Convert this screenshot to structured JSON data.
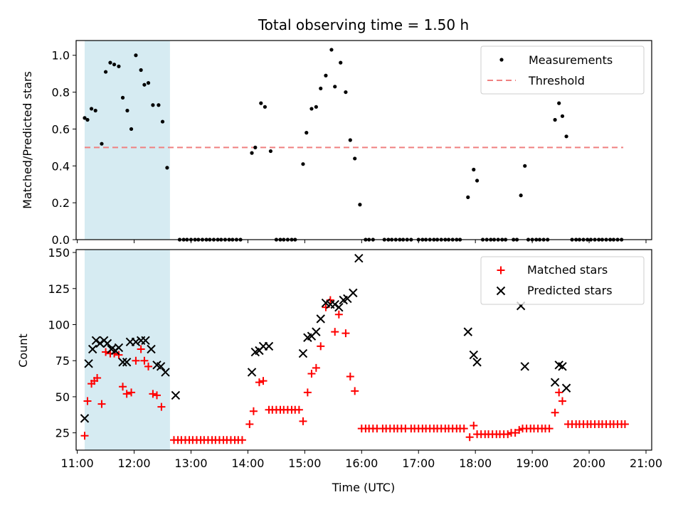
{
  "chart_data": {
    "title": "Total observing time = 1.50 h",
    "xlabel": "Time (UTC)",
    "x_tick_labels": [
      "11:00",
      "12:00",
      "13:00",
      "14:00",
      "15:00",
      "16:00",
      "17:00",
      "18:00",
      "19:00",
      "20:00",
      "21:00"
    ],
    "x_range_hours": [
      10.98,
      21.1
    ],
    "highlight_span_hours": [
      11.13,
      12.63
    ],
    "top_panel": {
      "type": "scatter",
      "ylabel": "Matched/Predicted stars",
      "ylim": [
        0,
        1.08
      ],
      "y_ticks": [
        "0.0",
        "0.2",
        "0.4",
        "0.6",
        "0.8",
        "1.0"
      ],
      "y_tick_values": [
        0,
        0.2,
        0.4,
        0.6,
        0.8,
        1.0
      ],
      "threshold": {
        "value": 0.5,
        "x_start": 11.13,
        "x_end": 20.6,
        "color": "#f08080"
      },
      "legend": {
        "placement": "top-right",
        "items": [
          "Measurements",
          "Threshold"
        ]
      },
      "measurements": [
        [
          11.13,
          0.66
        ],
        [
          11.18,
          0.65
        ],
        [
          11.25,
          0.71
        ],
        [
          11.32,
          0.7
        ],
        [
          11.43,
          0.52
        ],
        [
          11.5,
          0.91
        ],
        [
          11.58,
          0.96
        ],
        [
          11.65,
          0.95
        ],
        [
          11.73,
          0.94
        ],
        [
          11.8,
          0.77
        ],
        [
          11.88,
          0.7
        ],
        [
          11.95,
          0.6
        ],
        [
          12.03,
          1.0
        ],
        [
          12.12,
          0.92
        ],
        [
          12.18,
          0.84
        ],
        [
          12.25,
          0.85
        ],
        [
          12.33,
          0.73
        ],
        [
          12.43,
          0.73
        ],
        [
          12.5,
          0.64
        ],
        [
          12.58,
          0.39
        ],
        [
          12.8,
          0.0
        ],
        [
          12.87,
          0.0
        ],
        [
          12.93,
          0.0
        ],
        [
          13.0,
          0.0
        ],
        [
          13.07,
          0.0
        ],
        [
          13.13,
          0.0
        ],
        [
          13.2,
          0.0
        ],
        [
          13.27,
          0.0
        ],
        [
          13.33,
          0.0
        ],
        [
          13.4,
          0.0
        ],
        [
          13.47,
          0.0
        ],
        [
          13.53,
          0.0
        ],
        [
          13.6,
          0.0
        ],
        [
          13.67,
          0.0
        ],
        [
          13.73,
          0.0
        ],
        [
          13.8,
          0.0
        ],
        [
          13.87,
          0.0
        ],
        [
          14.07,
          0.47
        ],
        [
          14.13,
          0.5
        ],
        [
          14.23,
          0.74
        ],
        [
          14.3,
          0.72
        ],
        [
          14.4,
          0.48
        ],
        [
          14.5,
          0.0
        ],
        [
          14.57,
          0.0
        ],
        [
          14.63,
          0.0
        ],
        [
          14.7,
          0.0
        ],
        [
          14.77,
          0.0
        ],
        [
          14.83,
          0.0
        ],
        [
          14.97,
          0.41
        ],
        [
          15.03,
          0.58
        ],
        [
          15.12,
          0.71
        ],
        [
          15.2,
          0.72
        ],
        [
          15.28,
          0.82
        ],
        [
          15.37,
          0.89
        ],
        [
          15.47,
          1.03
        ],
        [
          15.53,
          0.83
        ],
        [
          15.63,
          0.96
        ],
        [
          15.72,
          0.8
        ],
        [
          15.8,
          0.54
        ],
        [
          15.88,
          0.44
        ],
        [
          15.97,
          0.19
        ],
        [
          16.07,
          0.0
        ],
        [
          16.13,
          0.0
        ],
        [
          16.2,
          0.0
        ],
        [
          16.4,
          0.0
        ],
        [
          16.47,
          0.0
        ],
        [
          16.53,
          0.0
        ],
        [
          16.6,
          0.0
        ],
        [
          16.67,
          0.0
        ],
        [
          16.73,
          0.0
        ],
        [
          16.8,
          0.0
        ],
        [
          16.87,
          0.0
        ],
        [
          17.0,
          0.0
        ],
        [
          17.07,
          0.0
        ],
        [
          17.13,
          0.0
        ],
        [
          17.2,
          0.0
        ],
        [
          17.27,
          0.0
        ],
        [
          17.33,
          0.0
        ],
        [
          17.4,
          0.0
        ],
        [
          17.47,
          0.0
        ],
        [
          17.53,
          0.0
        ],
        [
          17.6,
          0.0
        ],
        [
          17.67,
          0.0
        ],
        [
          17.73,
          0.0
        ],
        [
          17.87,
          0.23
        ],
        [
          17.97,
          0.38
        ],
        [
          18.03,
          0.32
        ],
        [
          18.13,
          0.0
        ],
        [
          18.2,
          0.0
        ],
        [
          18.27,
          0.0
        ],
        [
          18.33,
          0.0
        ],
        [
          18.4,
          0.0
        ],
        [
          18.47,
          0.0
        ],
        [
          18.53,
          0.0
        ],
        [
          18.67,
          0.0
        ],
        [
          18.73,
          0.0
        ],
        [
          18.8,
          0.24
        ],
        [
          18.87,
          0.4
        ],
        [
          18.93,
          0.0
        ],
        [
          19.0,
          0.0
        ],
        [
          19.07,
          0.0
        ],
        [
          19.13,
          0.0
        ],
        [
          19.2,
          0.0
        ],
        [
          19.27,
          0.0
        ],
        [
          19.4,
          0.65
        ],
        [
          19.47,
          0.74
        ],
        [
          19.53,
          0.67
        ],
        [
          19.6,
          0.56
        ],
        [
          19.7,
          0.0
        ],
        [
          19.77,
          0.0
        ],
        [
          19.83,
          0.0
        ],
        [
          19.9,
          0.0
        ],
        [
          19.97,
          0.0
        ],
        [
          20.03,
          0.0
        ],
        [
          20.1,
          0.0
        ],
        [
          20.17,
          0.0
        ],
        [
          20.23,
          0.0
        ],
        [
          20.3,
          0.0
        ],
        [
          20.37,
          0.0
        ],
        [
          20.43,
          0.0
        ],
        [
          20.5,
          0.0
        ],
        [
          20.57,
          0.0
        ]
      ]
    },
    "bottom_panel": {
      "type": "scatter",
      "ylabel": "Count",
      "ylim": [
        13,
        152
      ],
      "y_ticks": [
        "25",
        "50",
        "75",
        "100",
        "125",
        "150"
      ],
      "y_tick_values": [
        25,
        50,
        75,
        100,
        125,
        150
      ],
      "legend": {
        "placement": "top-right",
        "items": [
          "Matched stars",
          "Predicted stars"
        ]
      },
      "matched_color": "#ff0000",
      "predicted_color": "#000000",
      "matched": [
        [
          11.13,
          23
        ],
        [
          11.18,
          47
        ],
        [
          11.25,
          59
        ],
        [
          11.3,
          61
        ],
        [
          11.35,
          63
        ],
        [
          11.43,
          45
        ],
        [
          11.5,
          81
        ],
        [
          11.58,
          80
        ],
        [
          11.65,
          80
        ],
        [
          11.73,
          79
        ],
        [
          11.8,
          57
        ],
        [
          11.87,
          52
        ],
        [
          11.95,
          53
        ],
        [
          12.03,
          75
        ],
        [
          12.12,
          83
        ],
        [
          12.18,
          75
        ],
        [
          12.25,
          71
        ],
        [
          12.33,
          52
        ],
        [
          12.4,
          51
        ],
        [
          12.48,
          43
        ],
        [
          12.7,
          20
        ],
        [
          12.77,
          20
        ],
        [
          12.83,
          20
        ],
        [
          12.9,
          20
        ],
        [
          12.97,
          20
        ],
        [
          13.03,
          20
        ],
        [
          13.1,
          20
        ],
        [
          13.17,
          20
        ],
        [
          13.23,
          20
        ],
        [
          13.3,
          20
        ],
        [
          13.37,
          20
        ],
        [
          13.43,
          20
        ],
        [
          13.5,
          20
        ],
        [
          13.57,
          20
        ],
        [
          13.63,
          20
        ],
        [
          13.7,
          20
        ],
        [
          13.77,
          20
        ],
        [
          13.83,
          20
        ],
        [
          13.9,
          20
        ],
        [
          14.03,
          31
        ],
        [
          14.1,
          40
        ],
        [
          14.2,
          60
        ],
        [
          14.27,
          61
        ],
        [
          14.37,
          41
        ],
        [
          14.43,
          41
        ],
        [
          14.5,
          41
        ],
        [
          14.57,
          41
        ],
        [
          14.63,
          41
        ],
        [
          14.7,
          41
        ],
        [
          14.77,
          41
        ],
        [
          14.83,
          41
        ],
        [
          14.9,
          41
        ],
        [
          14.97,
          33
        ],
        [
          15.05,
          53
        ],
        [
          15.12,
          66
        ],
        [
          15.2,
          70
        ],
        [
          15.28,
          85
        ],
        [
          15.37,
          112
        ],
        [
          15.45,
          117
        ],
        [
          15.53,
          95
        ],
        [
          15.6,
          107
        ],
        [
          15.72,
          94
        ],
        [
          15.8,
          64
        ],
        [
          15.88,
          54
        ],
        [
          16.0,
          28
        ],
        [
          16.07,
          28
        ],
        [
          16.13,
          28
        ],
        [
          16.2,
          28
        ],
        [
          16.27,
          28
        ],
        [
          16.37,
          28
        ],
        [
          16.43,
          28
        ],
        [
          16.5,
          28
        ],
        [
          16.57,
          28
        ],
        [
          16.63,
          28
        ],
        [
          16.7,
          28
        ],
        [
          16.77,
          28
        ],
        [
          16.87,
          28
        ],
        [
          16.93,
          28
        ],
        [
          17.0,
          28
        ],
        [
          17.07,
          28
        ],
        [
          17.13,
          28
        ],
        [
          17.2,
          28
        ],
        [
          17.27,
          28
        ],
        [
          17.33,
          28
        ],
        [
          17.4,
          28
        ],
        [
          17.47,
          28
        ],
        [
          17.53,
          28
        ],
        [
          17.6,
          28
        ],
        [
          17.67,
          28
        ],
        [
          17.73,
          28
        ],
        [
          17.8,
          28
        ],
        [
          17.9,
          22
        ],
        [
          17.97,
          30
        ],
        [
          18.03,
          24
        ],
        [
          18.1,
          24
        ],
        [
          18.17,
          24
        ],
        [
          18.23,
          24
        ],
        [
          18.3,
          24
        ],
        [
          18.37,
          24
        ],
        [
          18.43,
          24
        ],
        [
          18.5,
          24
        ],
        [
          18.57,
          24
        ],
        [
          18.63,
          25
        ],
        [
          18.7,
          25
        ],
        [
          18.77,
          27
        ],
        [
          18.83,
          28
        ],
        [
          18.9,
          28
        ],
        [
          18.97,
          28
        ],
        [
          19.03,
          28
        ],
        [
          19.1,
          28
        ],
        [
          19.17,
          28
        ],
        [
          19.23,
          28
        ],
        [
          19.3,
          28
        ],
        [
          19.4,
          39
        ],
        [
          19.47,
          53
        ],
        [
          19.53,
          47
        ],
        [
          19.63,
          31
        ],
        [
          19.7,
          31
        ],
        [
          19.77,
          31
        ],
        [
          19.83,
          31
        ],
        [
          19.9,
          31
        ],
        [
          19.97,
          31
        ],
        [
          20.03,
          31
        ],
        [
          20.1,
          31
        ],
        [
          20.17,
          31
        ],
        [
          20.23,
          31
        ],
        [
          20.3,
          31
        ],
        [
          20.37,
          31
        ],
        [
          20.43,
          31
        ],
        [
          20.5,
          31
        ],
        [
          20.57,
          31
        ],
        [
          20.63,
          31
        ]
      ],
      "predicted": [
        [
          11.13,
          35
        ],
        [
          11.2,
          73
        ],
        [
          11.27,
          83
        ],
        [
          11.33,
          89
        ],
        [
          11.4,
          87
        ],
        [
          11.47,
          89
        ],
        [
          11.53,
          87
        ],
        [
          11.6,
          83
        ],
        [
          11.67,
          82
        ],
        [
          11.73,
          84
        ],
        [
          11.8,
          74
        ],
        [
          11.87,
          74
        ],
        [
          11.93,
          88
        ],
        [
          12.03,
          88
        ],
        [
          12.12,
          89
        ],
        [
          12.2,
          89
        ],
        [
          12.3,
          83
        ],
        [
          12.4,
          72
        ],
        [
          12.47,
          71
        ],
        [
          12.55,
          67
        ],
        [
          12.73,
          51
        ],
        [
          14.07,
          67
        ],
        [
          14.13,
          81
        ],
        [
          14.2,
          82
        ],
        [
          14.27,
          85
        ],
        [
          14.37,
          85
        ],
        [
          14.97,
          80
        ],
        [
          15.05,
          91
        ],
        [
          15.12,
          92
        ],
        [
          15.2,
          95
        ],
        [
          15.28,
          104
        ],
        [
          15.37,
          115
        ],
        [
          15.45,
          114
        ],
        [
          15.53,
          114
        ],
        [
          15.6,
          112
        ],
        [
          15.68,
          117
        ],
        [
          15.75,
          118
        ],
        [
          15.85,
          122
        ],
        [
          15.95,
          146
        ],
        [
          17.87,
          95
        ],
        [
          17.97,
          79
        ],
        [
          18.03,
          74
        ],
        [
          18.8,
          113
        ],
        [
          18.87,
          71
        ],
        [
          19.4,
          60
        ],
        [
          19.47,
          72
        ],
        [
          19.53,
          71
        ],
        [
          19.6,
          56
        ]
      ]
    }
  }
}
